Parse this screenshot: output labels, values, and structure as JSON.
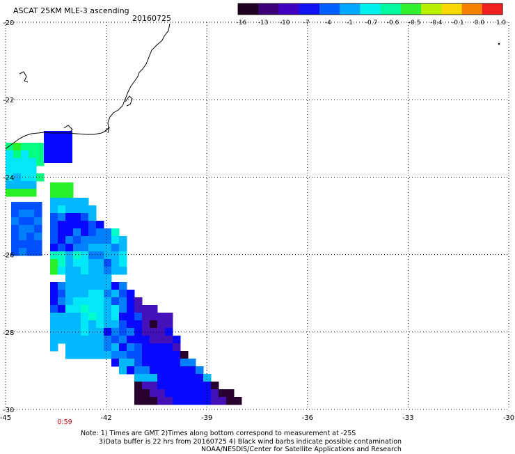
{
  "header": {
    "title": "ASCAT 25KM MLE-3 ascending",
    "date": "20160725"
  },
  "colorbar": {
    "tick_labels": [
      "-16",
      "-13",
      "-10",
      "-7",
      "-4",
      "-1",
      "-0.7",
      "-0.6",
      "-0.5",
      "-0.4",
      "-0.1",
      "0.0",
      "1.0"
    ],
    "colors": [
      "#200020",
      "#3c0078",
      "#4000c0",
      "#1010f0",
      "#0060ff",
      "#00a8ff",
      "#00f0f0",
      "#00f8a0",
      "#30f030",
      "#b8f000",
      "#f8d800",
      "#f88000",
      "#f02020"
    ]
  },
  "map": {
    "lat_ticks": [
      -20,
      -22,
      -24,
      -26,
      -28,
      -30
    ],
    "lon_ticks": [
      -45,
      -42,
      -39,
      -36,
      -33,
      -30
    ],
    "lat_labels": [
      "-20",
      "-22",
      "-24",
      "-26",
      "-28",
      "-30"
    ],
    "lon_labels": [
      "-45",
      "-42",
      "-39",
      "-36",
      "-33",
      "-30"
    ],
    "lon_range": [
      -45,
      -30
    ],
    "lat_range": [
      -30,
      -20
    ],
    "time_label": "0:59",
    "time_label_color": "#d00000",
    "swath_colors": {
      "darkpurple": "#280030",
      "purple": "#4410b8",
      "blue": "#0808ff",
      "azure": "#0050ff",
      "midblue": "#0080ff",
      "lightblue": "#00b8ff",
      "cyan": "#00e8f8",
      "aqua": "#00ffc8",
      "springgreen": "#00ff80",
      "green": "#28f028"
    }
  },
  "notes": {
    "line1": "Note: 1) Times are GMT 2)Times along bottom correspond to measurement at -25S",
    "line2": "3)Data buffer is 22 hrs from 20160725 4) Black wind barbs indicate possible contamination",
    "line3": "NOAA/NESDIS/Center for Satellite Applications and Research"
  }
}
